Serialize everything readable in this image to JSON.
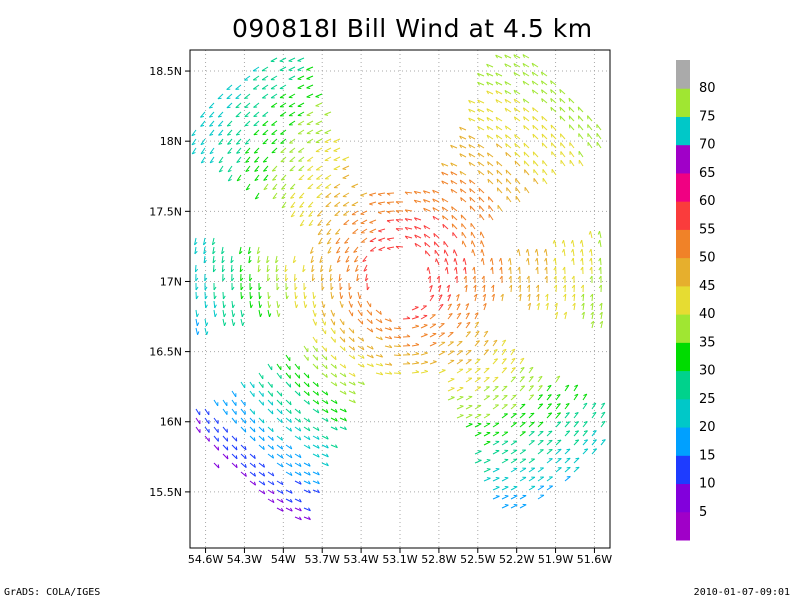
{
  "chart_data": {
    "type": "vector_field",
    "title": "090818I Bill Wind at 4.5 km",
    "x_ticks": [
      "54.6W",
      "54.3W",
      "54W",
      "53.7W",
      "53.4W",
      "53.1W",
      "52.8W",
      "52.5W",
      "52.2W",
      "51.9W",
      "51.6W"
    ],
    "y_ticks": [
      "18.5N",
      "18N",
      "17.5N",
      "17N",
      "16.5N",
      "16N",
      "15.5N"
    ],
    "xlim_lon": [
      -54.72,
      -51.48
    ],
    "ylim_lat": [
      15.1,
      18.65
    ],
    "center": {
      "lon": -53.1,
      "lat": 17.0
    },
    "grid": true,
    "colorbar": {
      "labels": [
        "5",
        "10",
        "15",
        "20",
        "25",
        "30",
        "35",
        "40",
        "45",
        "50",
        "55",
        "60",
        "65",
        "70",
        "75",
        "80"
      ],
      "colors": [
        "#a000c8",
        "#8200dc",
        "#1e3cff",
        "#00a0ff",
        "#00c8c8",
        "#00d28c",
        "#00dc00",
        "#a0e632",
        "#e6dc32",
        "#e6af2d",
        "#f08228",
        "#fa3c3c",
        "#f00082",
        "#a000c8",
        "#00c8c8",
        "#a0e632",
        "#aaaaaa"
      ]
    }
  },
  "footer": {
    "left": "GrADS: COLA/IGES",
    "right": "2010-01-07-09:01"
  }
}
